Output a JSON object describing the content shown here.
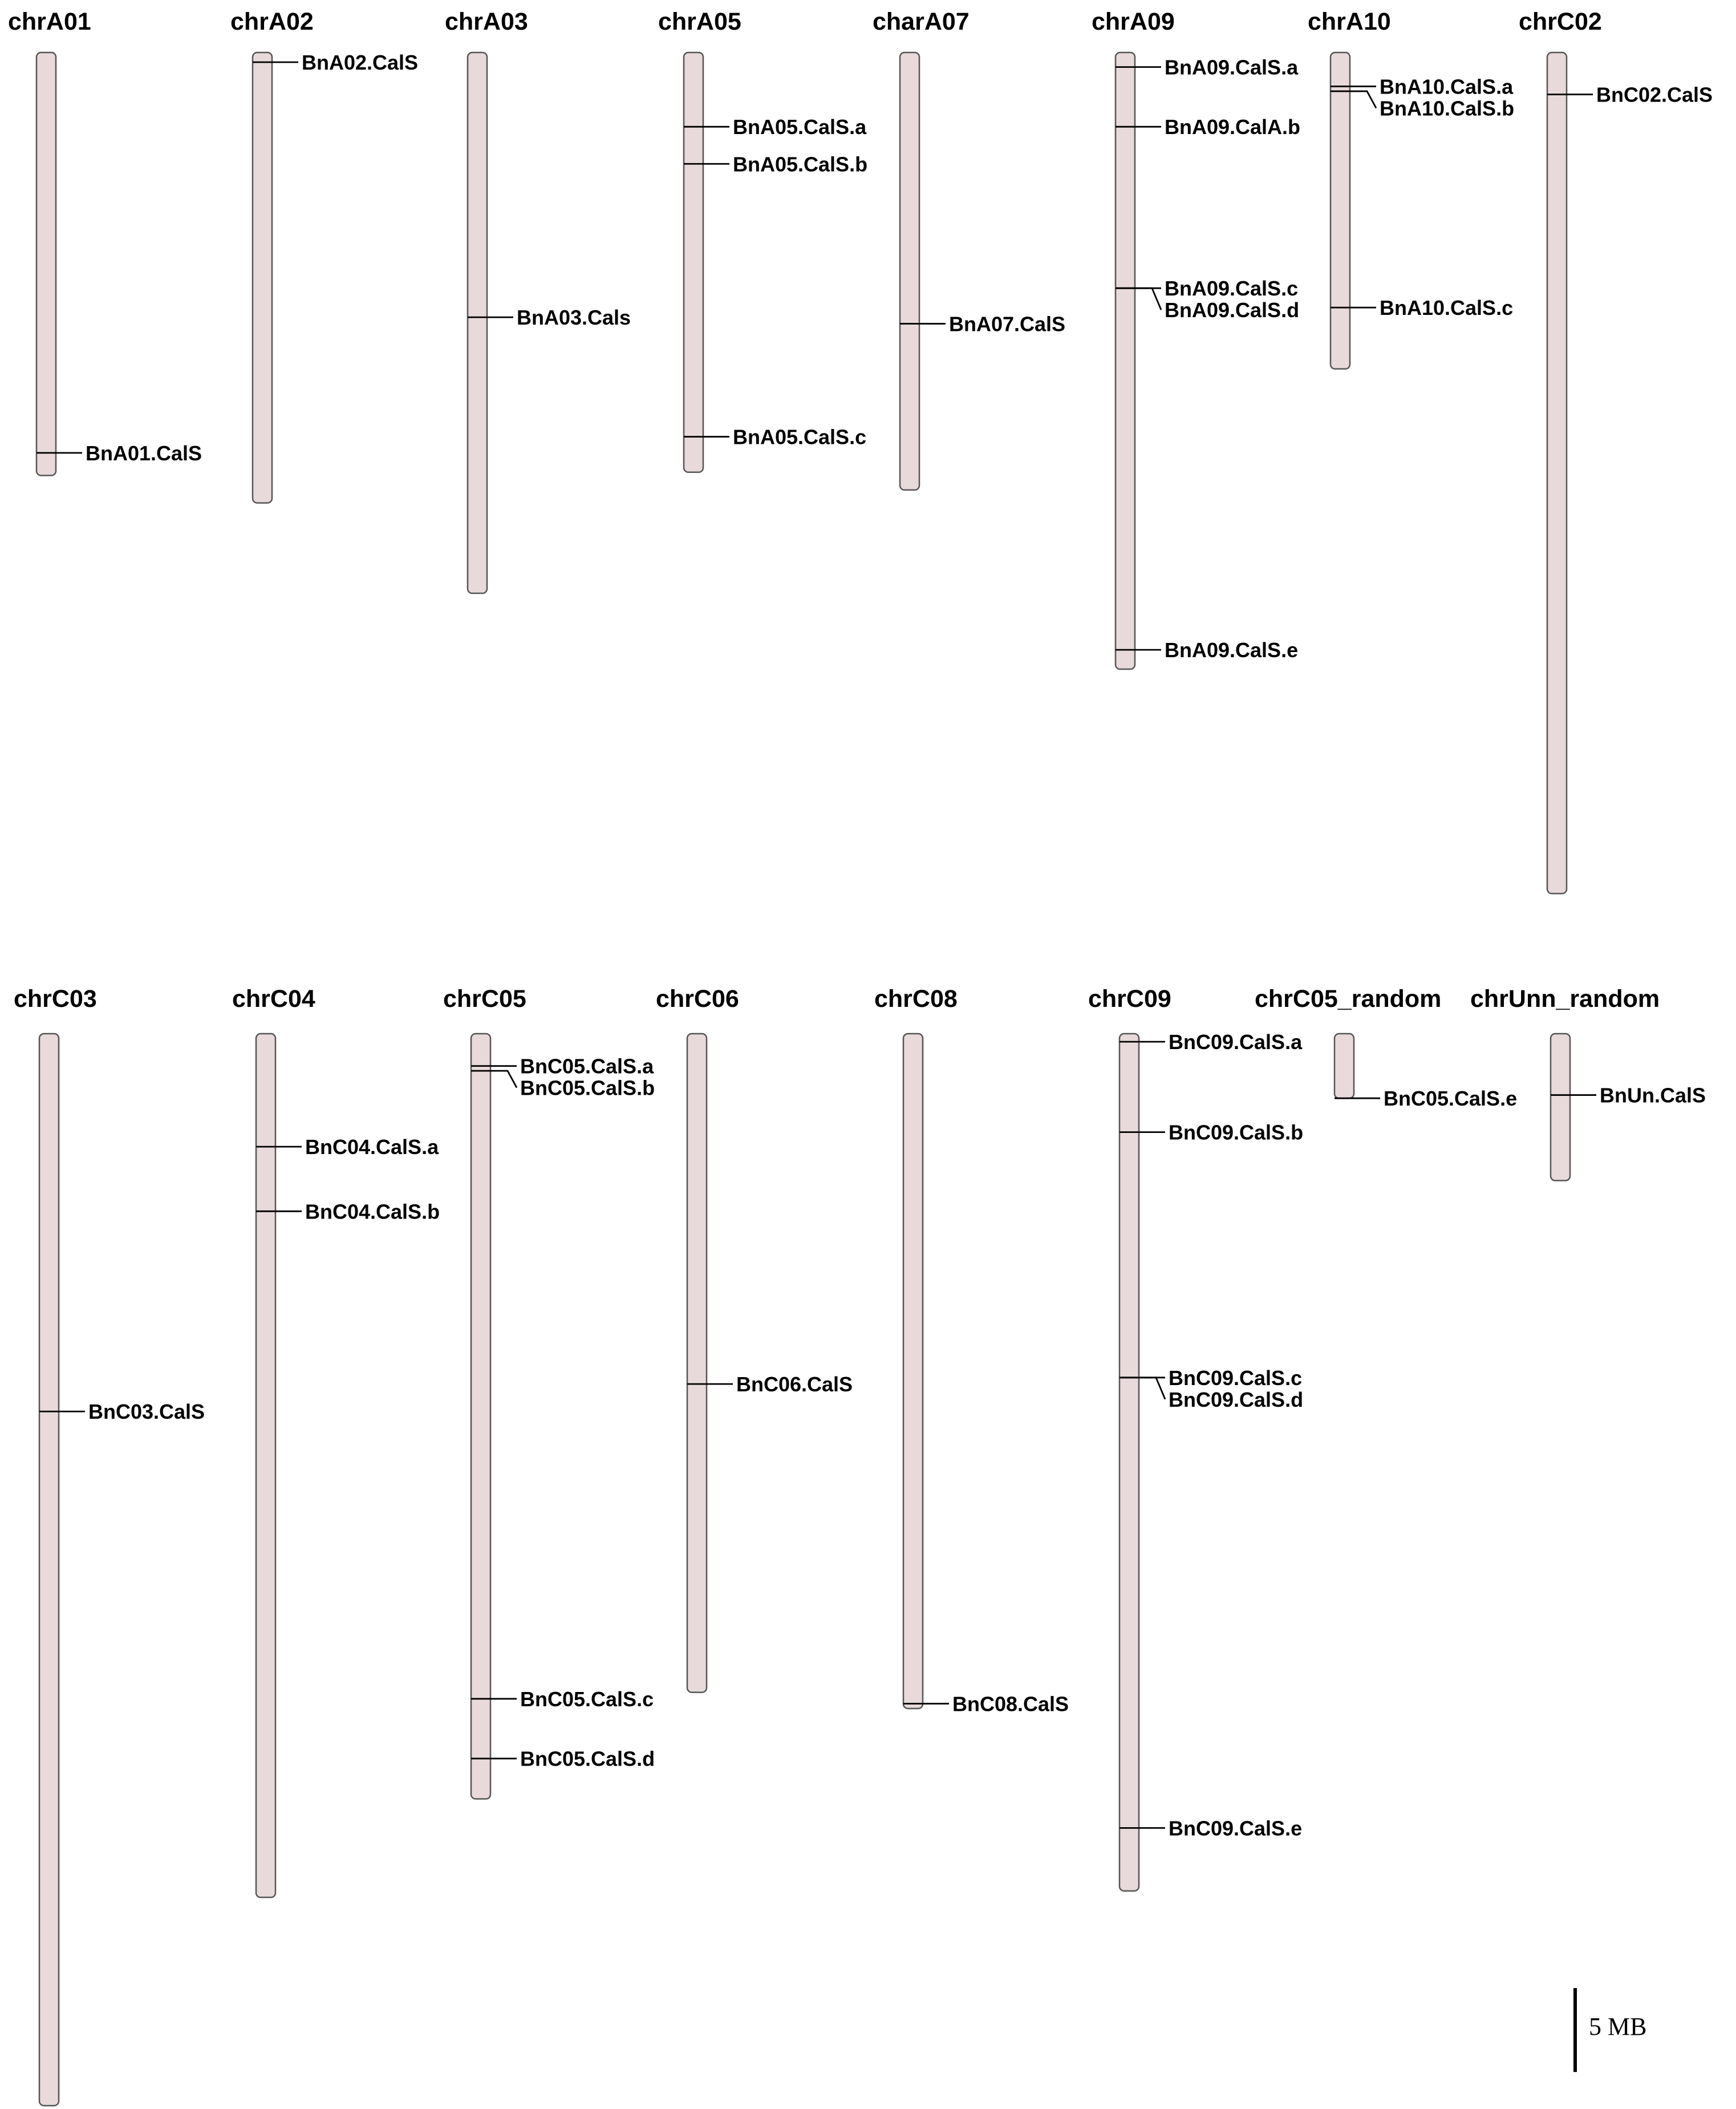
{
  "scale_bar": {
    "label": "5 MB",
    "length_mb": 5
  },
  "chromosomes": [
    {
      "name": "chrA01",
      "length_mb": 26.2,
      "genes": [
        {
          "name": "BnA01.CalS",
          "pos_mb": 24.8
        }
      ]
    },
    {
      "name": "chrA02",
      "length_mb": 27.9,
      "genes": [
        {
          "name": "BnA02.CalS",
          "pos_mb": 0.6
        }
      ]
    },
    {
      "name": "chrA03",
      "length_mb": 33.5,
      "genes": [
        {
          "name": "BnA03.Cals",
          "pos_mb": 16.4
        }
      ]
    },
    {
      "name": "chrA05",
      "length_mb": 26.0,
      "genes": [
        {
          "name": "BnA05.CalS.a",
          "pos_mb": 4.6
        },
        {
          "name": "BnA05.CalS.b",
          "pos_mb": 6.9
        },
        {
          "name": "BnA05.CalS.c",
          "pos_mb": 23.8
        }
      ]
    },
    {
      "name": "charA07",
      "length_mb": 27.1,
      "genes": [
        {
          "name": "BnA07.CalS",
          "pos_mb": 16.8
        }
      ]
    },
    {
      "name": "chrA09",
      "length_mb": 38.2,
      "genes": [
        {
          "name": "BnA09.CalS.a",
          "pos_mb": 0.9
        },
        {
          "name": "BnA09.CalA.b",
          "pos_mb": 4.6
        },
        {
          "name": "BnA09.CalS.c",
          "pos_mb": 14.6
        },
        {
          "name": "BnA09.CalS.d",
          "pos_mb": 14.6
        },
        {
          "name": "BnA09.CalS.e",
          "pos_mb": 37.0
        }
      ]
    },
    {
      "name": "chrA10",
      "length_mb": 19.6,
      "genes": [
        {
          "name": "BnA10.CalS.a",
          "pos_mb": 2.1
        },
        {
          "name": "BnA10.CalS.b",
          "pos_mb": 2.4
        },
        {
          "name": "BnA10.CalS.c",
          "pos_mb": 15.8
        }
      ]
    },
    {
      "name": "chrC02",
      "length_mb": 52.1,
      "genes": [
        {
          "name": "BnC02.CalS",
          "pos_mb": 2.6
        }
      ]
    },
    {
      "name": "chrC03",
      "length_mb": 66.4,
      "genes": [
        {
          "name": "BnC03.CalS",
          "pos_mb": 23.4
        }
      ]
    },
    {
      "name": "chrC04",
      "length_mb": 53.5,
      "genes": [
        {
          "name": "BnC04.CalS.a",
          "pos_mb": 7.0
        },
        {
          "name": "BnC04.CalS.b",
          "pos_mb": 11.0
        }
      ]
    },
    {
      "name": "chrC05",
      "length_mb": 47.4,
      "genes": [
        {
          "name": "BnC05.CalS.a",
          "pos_mb": 2.0
        },
        {
          "name": "BnC05.CalS.b",
          "pos_mb": 2.3
        },
        {
          "name": "BnC05.CalS.c",
          "pos_mb": 41.2
        },
        {
          "name": "BnC05.CalS.d",
          "pos_mb": 44.9
        }
      ]
    },
    {
      "name": "chrC06",
      "length_mb": 40.8,
      "genes": [
        {
          "name": "BnC06.CalS",
          "pos_mb": 21.7
        }
      ]
    },
    {
      "name": "chrC08",
      "length_mb": 41.8,
      "genes": [
        {
          "name": "BnC08.CalS",
          "pos_mb": 41.5
        }
      ]
    },
    {
      "name": "chrC09",
      "length_mb": 53.1,
      "genes": [
        {
          "name": "BnC09.CalS.a",
          "pos_mb": 0.5
        },
        {
          "name": "BnC09.CalS.b",
          "pos_mb": 6.1
        },
        {
          "name": "BnC09.CalS.c",
          "pos_mb": 21.3
        },
        {
          "name": "BnC09.CalS.d",
          "pos_mb": 21.3
        },
        {
          "name": "BnC09.CalS.e",
          "pos_mb": 49.2
        }
      ]
    },
    {
      "name": "chrC05_random",
      "length_mb": 4.0,
      "genes": [
        {
          "name": "BnC05.CalS.e",
          "pos_mb": 4.0
        }
      ]
    },
    {
      "name": "chrUnn_random",
      "length_mb": 9.1,
      "genes": [
        {
          "name": "BnUn.CalS",
          "pos_mb": 3.8
        }
      ]
    }
  ]
}
